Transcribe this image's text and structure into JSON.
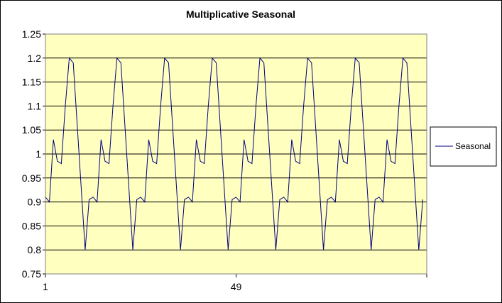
{
  "chart_data": {
    "type": "line",
    "title": "Multiplicative Seasonal",
    "xlabel": "",
    "ylabel": "",
    "ylim": [
      0.75,
      1.25
    ],
    "y_ticks": [
      "0.75",
      "0.8",
      "0.85",
      "0.9",
      "0.95",
      "1",
      "1.05",
      "1.1",
      "1.15",
      "1.2",
      "1.25"
    ],
    "x_tick_labels": [
      {
        "index": 1,
        "label": "1"
      },
      {
        "index": 49,
        "label": "49"
      }
    ],
    "x_range": [
      1,
      97
    ],
    "grid": true,
    "legend_position": "right",
    "plot_background": "#ffffc0",
    "series": [
      {
        "name": "Seasonal",
        "color": "#000080",
        "x": [
          1,
          2,
          3,
          4,
          5,
          6,
          7,
          8,
          9,
          10,
          11,
          12,
          13,
          14,
          15,
          16,
          17,
          18,
          19,
          20,
          21,
          22,
          23,
          24,
          25,
          26,
          27,
          28,
          29,
          30,
          31,
          32,
          33,
          34,
          35,
          36,
          37,
          38,
          39,
          40,
          41,
          42,
          43,
          44,
          45,
          46,
          47,
          48,
          49,
          50,
          51,
          52,
          53,
          54,
          55,
          56,
          57,
          58,
          59,
          60,
          61,
          62,
          63,
          64,
          65,
          66,
          67,
          68,
          69,
          70,
          71,
          72,
          73,
          74,
          75,
          76,
          77,
          78,
          79,
          80,
          81,
          82,
          83,
          84,
          85,
          86,
          87,
          88,
          89,
          90,
          91,
          92,
          93,
          94,
          95,
          96
        ],
        "values": [
          0.91,
          0.9,
          1.03,
          0.985,
          0.98,
          1.1,
          1.2,
          1.19,
          1.06,
          0.93,
          0.8,
          0.905,
          0.91,
          0.9,
          1.03,
          0.985,
          0.98,
          1.1,
          1.2,
          1.19,
          1.06,
          0.93,
          0.8,
          0.905,
          0.91,
          0.9,
          1.03,
          0.985,
          0.98,
          1.1,
          1.2,
          1.19,
          1.06,
          0.93,
          0.8,
          0.905,
          0.91,
          0.9,
          1.03,
          0.985,
          0.98,
          1.1,
          1.2,
          1.19,
          1.06,
          0.93,
          0.8,
          0.905,
          0.91,
          0.9,
          1.03,
          0.985,
          0.98,
          1.1,
          1.2,
          1.19,
          1.06,
          0.93,
          0.8,
          0.905,
          0.91,
          0.9,
          1.03,
          0.985,
          0.98,
          1.1,
          1.2,
          1.19,
          1.06,
          0.93,
          0.8,
          0.905,
          0.91,
          0.9,
          1.03,
          0.985,
          0.98,
          1.1,
          1.2,
          1.19,
          1.06,
          0.93,
          0.8,
          0.905,
          0.91,
          0.9,
          1.03,
          0.985,
          0.98,
          1.1,
          1.2,
          1.19,
          1.06,
          0.93,
          0.8,
          0.905
        ]
      }
    ]
  }
}
